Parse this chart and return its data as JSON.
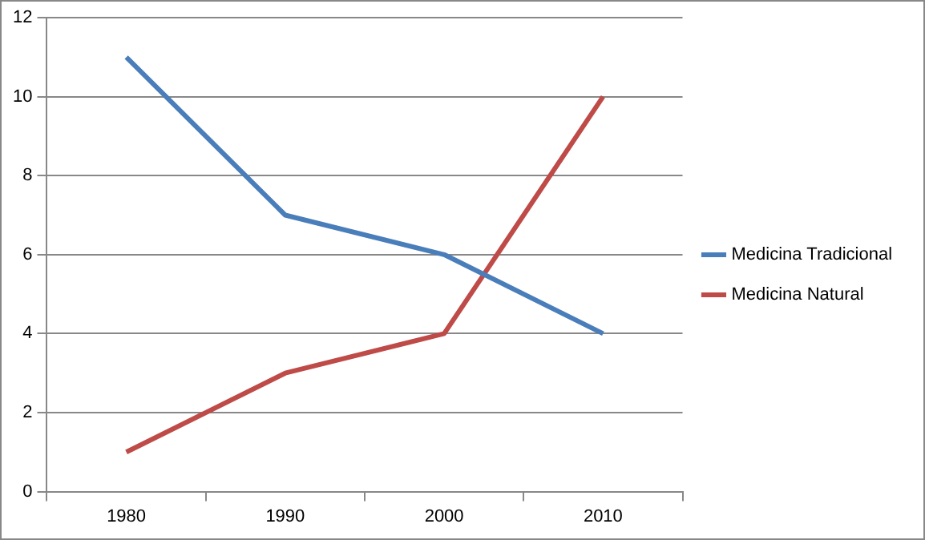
{
  "chart_data": {
    "type": "line",
    "categories": [
      "1980",
      "1990",
      "2000",
      "2010"
    ],
    "series": [
      {
        "name": "Medicina Tradicional",
        "color": "#4a7ebb",
        "values": [
          11,
          7,
          6,
          4
        ]
      },
      {
        "name": "Medicina Natural",
        "color": "#be4b48",
        "values": [
          1,
          3,
          4,
          10
        ]
      }
    ],
    "ylim": [
      0,
      12
    ],
    "yticks": [
      0,
      2,
      4,
      6,
      8,
      10,
      12
    ],
    "grid": "y",
    "legend": "right",
    "marker": "none",
    "line_style": "solid"
  }
}
